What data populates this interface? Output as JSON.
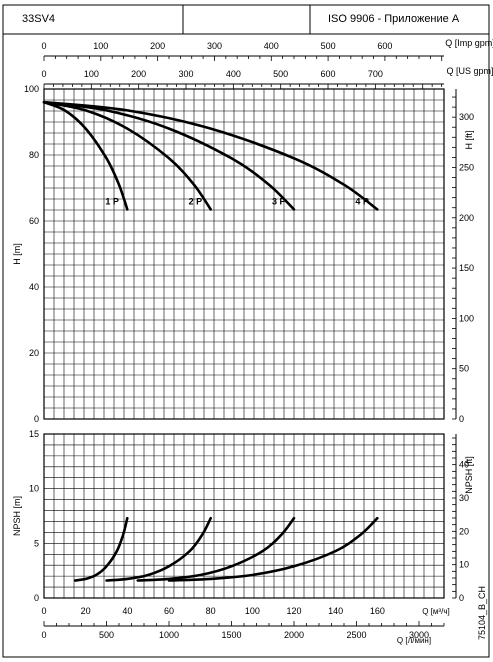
{
  "header": {
    "model": "33SV4",
    "standard": "ISO 9906 - Приложение A"
  },
  "side_code": "75104_B_CH",
  "chart_data": [
    {
      "type": "line",
      "name": "head",
      "ylabel": "H [m]",
      "ylabel_right": "H [ft]",
      "ylim": [
        0,
        100
      ],
      "yticks": [
        0,
        20,
        40,
        60,
        80,
        100
      ],
      "ylim_right": [
        0,
        328
      ],
      "yticks_right": [
        0,
        50,
        100,
        150,
        200,
        250,
        300
      ],
      "top_axes": [
        {
          "label": "Q [Imp gpm]",
          "ticks": [
            0,
            100,
            200,
            300,
            400,
            500,
            600
          ],
          "max": 704
        },
        {
          "label": "Q [US gpm]",
          "ticks": [
            0,
            100,
            200,
            300,
            400,
            500,
            600,
            700
          ],
          "max": 845
        }
      ],
      "x_units": "m3/h",
      "xlim": [
        0,
        192
      ],
      "grid": true,
      "series": [
        {
          "name": "1 P",
          "x": [
            0,
            10,
            20,
            30,
            36,
            40
          ],
          "y": [
            96,
            93.5,
            88,
            79,
            71,
            63.5
          ]
        },
        {
          "name": "2 P",
          "x": [
            0,
            20,
            40,
            60,
            72,
            80
          ],
          "y": [
            96,
            93.5,
            88,
            79,
            71,
            63.5
          ]
        },
        {
          "name": "3 P",
          "x": [
            0,
            30,
            60,
            90,
            108,
            120
          ],
          "y": [
            96,
            93.5,
            88,
            79,
            71,
            63.5
          ]
        },
        {
          "name": "4 P",
          "x": [
            0,
            40,
            80,
            120,
            144,
            160
          ],
          "y": [
            96,
            93.5,
            88,
            79,
            71,
            63.5
          ]
        }
      ]
    },
    {
      "type": "line",
      "name": "npsh",
      "ylabel": "NPSH [m]",
      "ylabel_right": "NPSH [ft]",
      "ylim": [
        0,
        15
      ],
      "yticks": [
        0,
        5,
        10,
        15
      ],
      "ylim_right": [
        0,
        49.2
      ],
      "yticks_right": [
        0,
        10,
        20,
        30,
        40
      ],
      "xlabel": "Q [м³/ч]",
      "xticks": [
        0,
        20,
        40,
        60,
        80,
        100,
        120,
        140,
        160
      ],
      "xlim": [
        0,
        192
      ],
      "bottom_axis": {
        "label": "Q [л/мин]",
        "ticks": [
          0,
          500,
          1000,
          1500,
          2000,
          2500,
          3000
        ],
        "max": 3200
      },
      "grid": true,
      "series": [
        {
          "name": "1 P",
          "x": [
            15,
            20,
            25,
            30,
            35,
            38,
            40
          ],
          "y": [
            1.6,
            1.75,
            2.1,
            2.9,
            4.3,
            5.8,
            7.3
          ]
        },
        {
          "name": "2 P",
          "x": [
            30,
            40,
            50,
            60,
            70,
            76,
            80
          ],
          "y": [
            1.6,
            1.75,
            2.1,
            2.9,
            4.3,
            5.8,
            7.3
          ]
        },
        {
          "name": "3 P",
          "x": [
            45,
            60,
            75,
            90,
            105,
            114,
            120
          ],
          "y": [
            1.6,
            1.75,
            2.1,
            2.9,
            4.3,
            5.8,
            7.3
          ]
        },
        {
          "name": "4 P",
          "x": [
            60,
            80,
            100,
            120,
            140,
            152,
            160
          ],
          "y": [
            1.6,
            1.75,
            2.1,
            2.9,
            4.3,
            5.8,
            7.3
          ]
        }
      ]
    }
  ]
}
